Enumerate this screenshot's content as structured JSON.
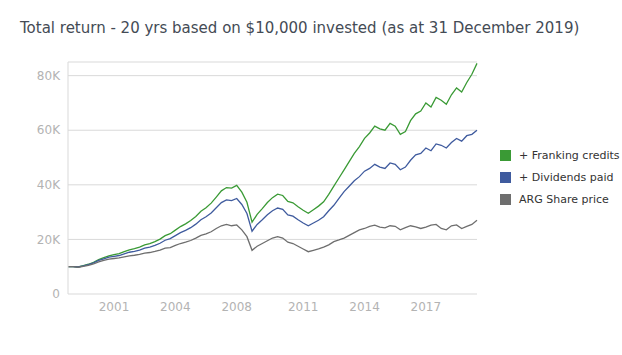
{
  "chart_data": {
    "type": "line",
    "title": "Total return - 20 yrs based on $10,000 invested (as at 31 December 2019)",
    "categories": [
      null,
      null,
      null,
      null,
      null,
      null,
      null,
      null,
      null,
      "2001",
      null,
      null,
      null,
      null,
      null,
      null,
      null,
      null,
      null,
      null,
      null,
      "2004",
      null,
      null,
      null,
      null,
      null,
      null,
      null,
      null,
      null,
      null,
      null,
      "2008",
      null,
      null,
      null,
      null,
      null,
      null,
      null,
      null,
      null,
      null,
      null,
      null,
      "2011",
      null,
      null,
      null,
      null,
      null,
      null,
      null,
      null,
      null,
      null,
      null,
      "2014",
      null,
      null,
      null,
      null,
      null,
      null,
      null,
      null,
      null,
      null,
      null,
      "2017",
      null,
      null,
      null,
      null,
      null,
      null,
      null,
      null,
      null,
      null
    ],
    "series": [
      {
        "name": "+ Franking credits",
        "color": "#3a9a35",
        "values": [
          10000,
          10000,
          9900,
          10400,
          10900,
          11600,
          12600,
          13300,
          14000,
          14400,
          14800,
          15500,
          16200,
          16600,
          17200,
          18000,
          18500,
          19200,
          20100,
          21400,
          22100,
          23400,
          24700,
          25700,
          26900,
          28400,
          30300,
          31600,
          33300,
          35500,
          37800,
          39000,
          38800,
          39800,
          37300,
          33600,
          26300,
          29200,
          31300,
          33500,
          35300,
          36600,
          36100,
          33900,
          33400,
          32000,
          30700,
          29600,
          30900,
          32200,
          33800,
          36500,
          39500,
          42500,
          45500,
          48500,
          51500,
          54000,
          57000,
          59000,
          61500,
          60500,
          60000,
          62500,
          61500,
          58500,
          59500,
          63500,
          66000,
          67000,
          70000,
          68500,
          72000,
          71000,
          69500,
          73000,
          75500,
          74000,
          77500,
          80500,
          84500
        ]
      },
      {
        "name": "+ Dividends paid",
        "color": "#3f5b9e",
        "values": [
          10000,
          10000,
          9900,
          10300,
          10800,
          11400,
          12300,
          12900,
          13500,
          13800,
          14100,
          14700,
          15300,
          15600,
          16100,
          16800,
          17200,
          17800,
          18600,
          19700,
          20300,
          21400,
          22500,
          23300,
          24300,
          25600,
          27200,
          28300,
          29700,
          31600,
          33500,
          34500,
          34200,
          35000,
          32800,
          29500,
          23000,
          25500,
          27200,
          29000,
          30500,
          31500,
          31000,
          29000,
          28500,
          27200,
          26000,
          25000,
          26000,
          27000,
          28300,
          30500,
          32500,
          35000,
          37500,
          39500,
          41500,
          43000,
          45000,
          46000,
          47500,
          46500,
          46000,
          48000,
          47500,
          45500,
          46500,
          49000,
          51000,
          51500,
          53500,
          52500,
          55000,
          54500,
          53500,
          55500,
          57000,
          56000,
          58000,
          58500,
          60000
        ]
      },
      {
        "name": "ARG Share price",
        "color": "#6e6e6e",
        "values": [
          10000,
          10000,
          9800,
          10100,
          10500,
          11000,
          11800,
          12300,
          12800,
          13000,
          13200,
          13600,
          14000,
          14200,
          14500,
          15000,
          15200,
          15600,
          16100,
          16800,
          17000,
          17800,
          18500,
          19000,
          19600,
          20500,
          21500,
          22000,
          22800,
          24000,
          25000,
          25500,
          25000,
          25300,
          23500,
          21000,
          16000,
          17500,
          18500,
          19500,
          20500,
          21000,
          20500,
          19000,
          18500,
          17500,
          16500,
          15500,
          16000,
          16500,
          17200,
          18000,
          19200,
          19800,
          20500,
          21500,
          22500,
          23500,
          24000,
          24800,
          25200,
          24500,
          24200,
          25000,
          24800,
          23500,
          24300,
          25000,
          24600,
          24000,
          24500,
          25200,
          25500,
          24000,
          23500,
          25000,
          25300,
          24000,
          24800,
          25500,
          27000
        ]
      }
    ],
    "ylim": [
      0,
      85000
    ],
    "yticks": [
      0,
      {
        "value": 20000,
        "label": "20K"
      },
      {
        "value": 40000,
        "label": "40K"
      },
      {
        "value": 60000,
        "label": "60K"
      },
      {
        "value": 80000,
        "label": "80K"
      }
    ],
    "grid": true,
    "legend": "right"
  }
}
